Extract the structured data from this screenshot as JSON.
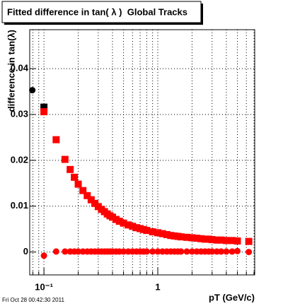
{
  "chart_data": {
    "type": "scatter",
    "title": "Fitted difference in tan( λ )  Global Tracks",
    "y_label": "difference in tan(λ)",
    "x_label": "pT (GeV/c)",
    "footer": "Fri Oct 28 00:42:30 2011",
    "xscale": "log",
    "xlim": [
      0.075,
      7.1
    ],
    "ylim": [
      -0.005,
      0.0485
    ],
    "xticks": [
      {
        "value": 0.1,
        "label": "10⁻¹"
      },
      1
    ],
    "xminorticks": [
      0.08,
      0.09,
      0.2,
      0.3,
      0.4,
      0.5,
      0.6,
      0.7,
      0.8,
      0.9,
      2,
      3,
      4,
      5,
      6,
      7
    ],
    "yticks": [
      0,
      0.01,
      0.02,
      0.03,
      0.04
    ],
    "grid": true,
    "series": [
      {
        "color": "#000000",
        "marker": "circle",
        "x": [
          0.079
        ],
        "values": [
          0.0353
        ]
      },
      {
        "color": "#000000",
        "marker": "square",
        "x": [
          0.1
        ],
        "values": [
          0.0316
        ]
      },
      {
        "color": "#ff0000",
        "marker": "square",
        "x": [
          0.1,
          0.128,
          0.153,
          0.17,
          0.185,
          0.2,
          0.22,
          0.24,
          0.26,
          0.28,
          0.3,
          0.32,
          0.34,
          0.36,
          0.38,
          0.4,
          0.43,
          0.46,
          0.5,
          0.55,
          0.6,
          0.65,
          0.7,
          0.75,
          0.8,
          0.9,
          1.0,
          1.1,
          1.2,
          1.3,
          1.4,
          1.5,
          1.6,
          1.8,
          2.0,
          2.2,
          2.4,
          2.6,
          2.8,
          3.0,
          3.3,
          3.6,
          4.0,
          4.5,
          5.0,
          6.3
        ],
        "values": [
          0.0306,
          0.0245,
          0.0202,
          0.018,
          0.0163,
          0.0148,
          0.0134,
          0.0123,
          0.0114,
          0.0106,
          0.0099,
          0.0093,
          0.0088,
          0.0083,
          0.0079,
          0.0076,
          0.0071,
          0.0067,
          0.0063,
          0.0059,
          0.0056,
          0.0053,
          0.0051,
          0.0049,
          0.0047,
          0.0044,
          0.0042,
          0.004,
          0.0038,
          0.0036,
          0.0035,
          0.0034,
          0.0033,
          0.0032,
          0.0031,
          0.003,
          0.0029,
          0.0028,
          0.0028,
          0.0027,
          0.0026,
          0.0026,
          0.0025,
          0.0025,
          0.0024,
          0.0023
        ]
      },
      {
        "color": "#ff0000",
        "marker": "circle",
        "x": [
          0.1,
          0.128,
          0.153,
          0.17,
          0.185,
          0.2,
          0.22,
          0.24,
          0.26,
          0.28,
          0.3,
          0.32,
          0.34,
          0.36,
          0.38,
          0.4,
          0.43,
          0.46,
          0.5,
          0.55,
          0.6,
          0.65,
          0.7,
          0.75,
          0.8,
          0.9,
          1.0,
          1.1,
          1.2,
          1.3,
          1.4,
          1.5,
          1.6,
          1.8,
          2.0,
          2.2,
          2.4,
          2.6,
          2.8,
          3.0,
          3.3,
          3.6,
          4.0,
          4.5,
          5.0,
          6.3
        ],
        "values": [
          -0.0008,
          0.0001,
          0.0001,
          0.0001,
          0.0001,
          0.0001,
          0.0001,
          0.0001,
          0.0001,
          0.0001,
          0.0001,
          0.0001,
          0.0001,
          0.0001,
          0.0001,
          0.0001,
          0.0001,
          0.0001,
          0.0001,
          0.0001,
          0.0001,
          0.0001,
          0.0001,
          0.0001,
          0.0001,
          0.0001,
          0.0001,
          0.0001,
          0.0001,
          0.0001,
          0.0001,
          0.0001,
          0.0001,
          0.0001,
          0.0001,
          0.0001,
          0.0001,
          0.0001,
          0.0001,
          0.0001,
          0.0001,
          0.0001,
          0.0001,
          0.0001,
          0.0002,
          0.0
        ]
      }
    ]
  }
}
